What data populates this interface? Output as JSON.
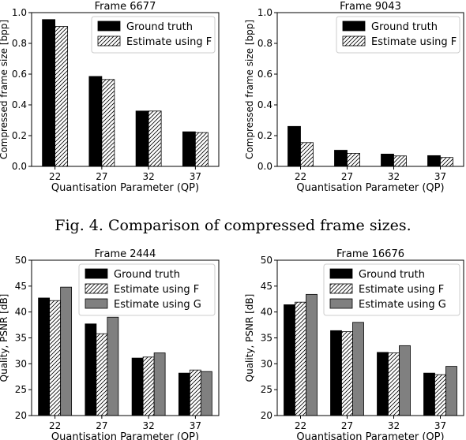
{
  "caption": "Fig. 4.   Comparison of compressed frame sizes.",
  "colors": {
    "ground_truth": "#000000",
    "estimate_f": "#ffffff",
    "estimate_g": "#808080"
  },
  "chart_data": [
    {
      "type": "bar",
      "title": "Frame 6677",
      "xlabel": "Quantisation Parameter (QP)",
      "ylabel": "Compressed frame size [bpp]",
      "categories": [
        "22",
        "27",
        "32",
        "37"
      ],
      "ylim": [
        0,
        1.0
      ],
      "yticks": [
        "0.0",
        "0.2",
        "0.4",
        "0.6",
        "0.8",
        "1.0"
      ],
      "legend": "top-right",
      "series": [
        {
          "name": "Ground truth",
          "values": [
            0.955,
            0.585,
            0.36,
            0.225
          ]
        },
        {
          "name": "Estimate using F",
          "values": [
            0.91,
            0.565,
            0.36,
            0.22
          ]
        }
      ]
    },
    {
      "type": "bar",
      "title": "Frame 9043",
      "xlabel": "Quantisation Parameter (QP)",
      "ylabel": "Compressed frame size [bpp]",
      "categories": [
        "22",
        "27",
        "32",
        "37"
      ],
      "ylim": [
        0,
        1.0
      ],
      "yticks": [
        "0.0",
        "0.2",
        "0.4",
        "0.6",
        "0.8",
        "1.0"
      ],
      "legend": "top-right",
      "series": [
        {
          "name": "Ground truth",
          "values": [
            0.26,
            0.105,
            0.08,
            0.07
          ]
        },
        {
          "name": "Estimate using F",
          "values": [
            0.155,
            0.085,
            0.068,
            0.058
          ]
        }
      ]
    },
    {
      "type": "bar",
      "title": "Frame 2444",
      "xlabel": "Quantisation Parameter (QP)",
      "ylabel": "Quality, PSNR [dB]",
      "categories": [
        "22",
        "27",
        "32",
        "37"
      ],
      "ylim": [
        20,
        50
      ],
      "yticks": [
        "20",
        "25",
        "30",
        "35",
        "40",
        "45",
        "50"
      ],
      "legend": "top-right",
      "series": [
        {
          "name": "Ground truth",
          "values": [
            42.7,
            37.7,
            31.1,
            28.2
          ]
        },
        {
          "name": "Estimate using F",
          "values": [
            42.2,
            35.8,
            31.3,
            28.8
          ]
        },
        {
          "name": "Estimate using G",
          "values": [
            44.8,
            39.0,
            32.1,
            28.5
          ]
        }
      ]
    },
    {
      "type": "bar",
      "title": "Frame 16676",
      "xlabel": "Quantisation Parameter (QP)",
      "ylabel": "Quality, PSNR [dB]",
      "categories": [
        "22",
        "27",
        "32",
        "37"
      ],
      "ylim": [
        20,
        50
      ],
      "yticks": [
        "20",
        "25",
        "30",
        "35",
        "40",
        "45",
        "50"
      ],
      "legend": "top-right",
      "series": [
        {
          "name": "Ground truth",
          "values": [
            41.4,
            36.4,
            32.2,
            28.2
          ]
        },
        {
          "name": "Estimate using F",
          "values": [
            41.9,
            36.2,
            32.1,
            27.9
          ]
        },
        {
          "name": "Estimate using G",
          "values": [
            43.4,
            38.0,
            33.5,
            29.5
          ]
        }
      ]
    }
  ]
}
